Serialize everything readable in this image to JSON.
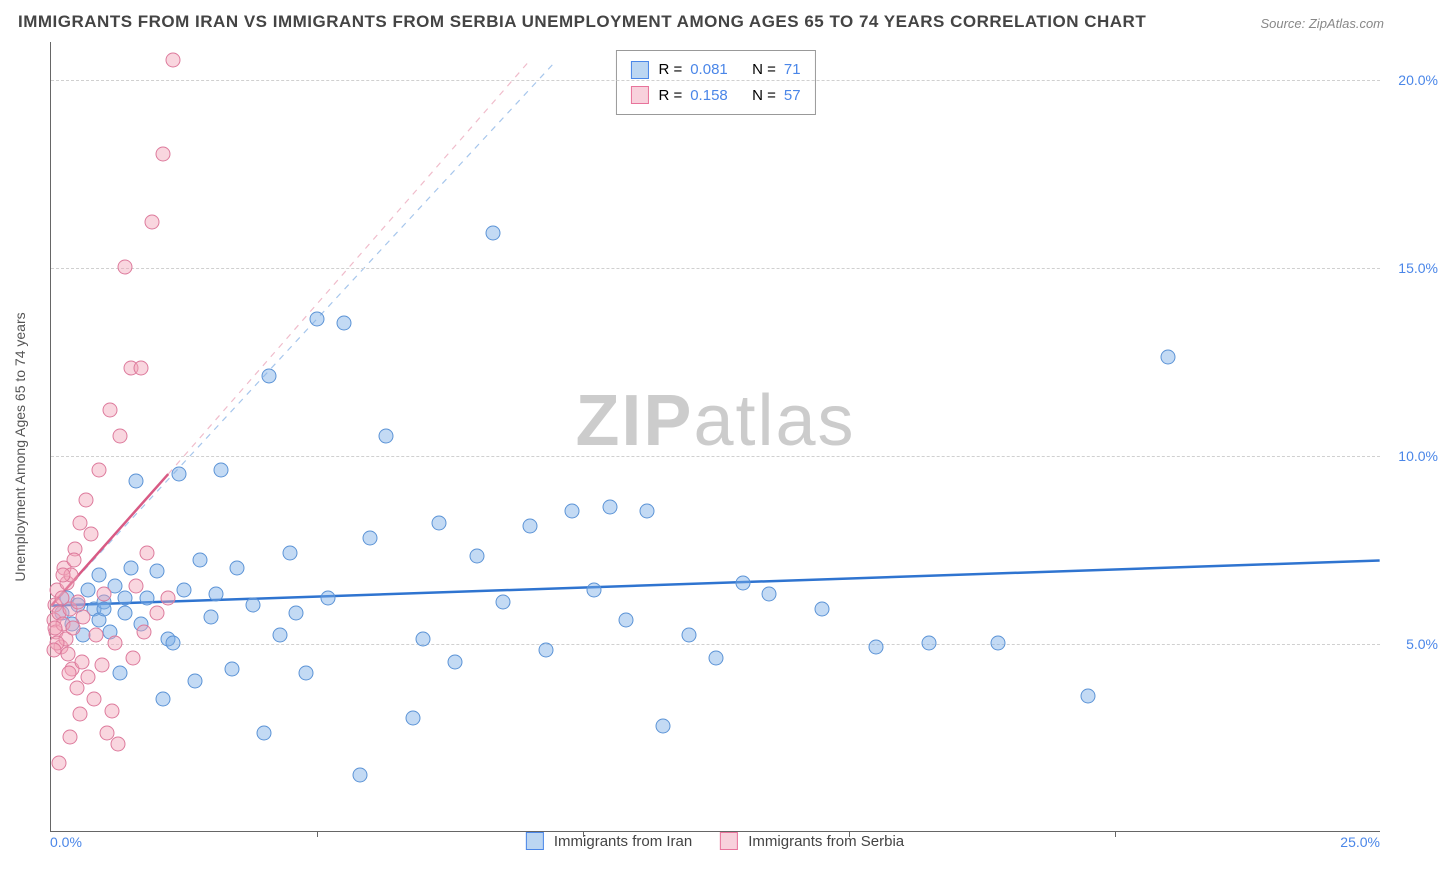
{
  "title": "IMMIGRANTS FROM IRAN VS IMMIGRANTS FROM SERBIA UNEMPLOYMENT AMONG AGES 65 TO 74 YEARS CORRELATION CHART",
  "source": "Source: ZipAtlas.com",
  "y_axis_label": "Unemployment Among Ages 65 to 74 years",
  "watermark_a": "ZIP",
  "watermark_b": "atlas",
  "chart": {
    "type": "scatter",
    "xlim": [
      0,
      25
    ],
    "ylim": [
      0,
      21
    ],
    "x_ticks": [
      0,
      5,
      10,
      15,
      20,
      25
    ],
    "x_tick_labels": [
      "0.0%",
      "",
      "",
      "",
      "",
      "25.0%"
    ],
    "y_ticks": [
      5,
      10,
      15,
      20
    ],
    "y_tick_labels": [
      "5.0%",
      "10.0%",
      "15.0%",
      "20.0%"
    ],
    "grid_color": "#d0d0d0",
    "background_color": "#ffffff",
    "series": [
      {
        "name": "Immigrants from Iran",
        "color_fill": "rgba(122,174,230,0.45)",
        "color_stroke": "#5b93d6",
        "marker_size": 15,
        "r": 0.081,
        "n": 71,
        "trend": {
          "x1": 0,
          "y1": 6.0,
          "x2": 25,
          "y2": 7.2,
          "color": "#2f74d0",
          "width": 2.5,
          "dash": "none"
        },
        "projection": {
          "x1": 0,
          "y1": 6.0,
          "x2": 9.5,
          "y2": 20.5,
          "color": "#a6c6ec",
          "width": 1.2,
          "dash": "6,6"
        },
        "points": [
          [
            0.2,
            5.8
          ],
          [
            0.3,
            6.2
          ],
          [
            0.4,
            5.5
          ],
          [
            0.5,
            6.0
          ],
          [
            0.6,
            5.2
          ],
          [
            0.7,
            6.4
          ],
          [
            0.8,
            5.9
          ],
          [
            0.9,
            5.6
          ],
          [
            1.0,
            6.1
          ],
          [
            1.1,
            5.3
          ],
          [
            1.2,
            6.5
          ],
          [
            1.3,
            4.2
          ],
          [
            1.4,
            5.8
          ],
          [
            1.5,
            7.0
          ],
          [
            1.6,
            9.3
          ],
          [
            1.8,
            6.2
          ],
          [
            2.0,
            6.9
          ],
          [
            2.1,
            3.5
          ],
          [
            2.2,
            5.1
          ],
          [
            2.4,
            9.5
          ],
          [
            2.5,
            6.4
          ],
          [
            2.7,
            4.0
          ],
          [
            2.8,
            7.2
          ],
          [
            3.0,
            5.7
          ],
          [
            3.2,
            9.6
          ],
          [
            3.4,
            4.3
          ],
          [
            3.5,
            7.0
          ],
          [
            3.8,
            6.0
          ],
          [
            4.0,
            2.6
          ],
          [
            4.1,
            12.1
          ],
          [
            4.3,
            5.2
          ],
          [
            4.5,
            7.4
          ],
          [
            4.8,
            4.2
          ],
          [
            5.0,
            13.6
          ],
          [
            5.2,
            6.2
          ],
          [
            5.5,
            13.5
          ],
          [
            5.8,
            1.5
          ],
          [
            6.0,
            7.8
          ],
          [
            6.3,
            10.5
          ],
          [
            6.8,
            3.0
          ],
          [
            7.0,
            5.1
          ],
          [
            7.3,
            8.2
          ],
          [
            7.6,
            4.5
          ],
          [
            8.0,
            7.3
          ],
          [
            8.3,
            15.9
          ],
          [
            8.5,
            6.1
          ],
          [
            9.0,
            8.1
          ],
          [
            9.3,
            4.8
          ],
          [
            9.8,
            8.5
          ],
          [
            10.2,
            6.4
          ],
          [
            10.5,
            8.6
          ],
          [
            10.8,
            5.6
          ],
          [
            11.2,
            8.5
          ],
          [
            11.5,
            2.8
          ],
          [
            12.0,
            5.2
          ],
          [
            12.5,
            4.6
          ],
          [
            13.0,
            6.6
          ],
          [
            13.5,
            6.3
          ],
          [
            14.5,
            5.9
          ],
          [
            15.5,
            4.9
          ],
          [
            16.5,
            5.0
          ],
          [
            17.8,
            5.0
          ],
          [
            19.5,
            3.6
          ],
          [
            21.0,
            12.6
          ],
          [
            1.0,
            5.9
          ],
          [
            1.4,
            6.2
          ],
          [
            1.7,
            5.5
          ],
          [
            0.9,
            6.8
          ],
          [
            2.3,
            5.0
          ],
          [
            3.1,
            6.3
          ],
          [
            4.6,
            5.8
          ]
        ]
      },
      {
        "name": "Immigrants from Serbia",
        "color_fill": "rgba(242,164,185,0.45)",
        "color_stroke": "#dd7a9c",
        "marker_size": 15,
        "r": 0.158,
        "n": 57,
        "trend": {
          "x1": 0,
          "y1": 6.0,
          "x2": 2.2,
          "y2": 9.5,
          "color": "#d85a84",
          "width": 2.5,
          "dash": "none"
        },
        "projection": {
          "x1": 2.2,
          "y1": 9.5,
          "x2": 9.0,
          "y2": 20.5,
          "color": "#f0bccb",
          "width": 1.2,
          "dash": "6,6"
        },
        "points": [
          [
            0.05,
            5.6
          ],
          [
            0.08,
            6.0
          ],
          [
            0.1,
            5.3
          ],
          [
            0.12,
            6.4
          ],
          [
            0.15,
            5.8
          ],
          [
            0.18,
            4.9
          ],
          [
            0.2,
            6.2
          ],
          [
            0.22,
            5.5
          ],
          [
            0.25,
            7.0
          ],
          [
            0.28,
            5.1
          ],
          [
            0.3,
            6.6
          ],
          [
            0.32,
            4.7
          ],
          [
            0.35,
            5.9
          ],
          [
            0.38,
            6.8
          ],
          [
            0.4,
            4.3
          ],
          [
            0.42,
            5.4
          ],
          [
            0.45,
            7.5
          ],
          [
            0.48,
            3.8
          ],
          [
            0.5,
            6.1
          ],
          [
            0.55,
            8.2
          ],
          [
            0.58,
            4.5
          ],
          [
            0.6,
            5.7
          ],
          [
            0.65,
            8.8
          ],
          [
            0.7,
            4.1
          ],
          [
            0.75,
            7.9
          ],
          [
            0.8,
            3.5
          ],
          [
            0.85,
            5.2
          ],
          [
            0.9,
            9.6
          ],
          [
            0.95,
            4.4
          ],
          [
            1.0,
            6.3
          ],
          [
            1.05,
            2.6
          ],
          [
            1.1,
            11.2
          ],
          [
            1.15,
            3.2
          ],
          [
            1.2,
            5.0
          ],
          [
            1.25,
            2.3
          ],
          [
            1.3,
            10.5
          ],
          [
            1.4,
            15.0
          ],
          [
            1.5,
            12.3
          ],
          [
            1.55,
            4.6
          ],
          [
            1.6,
            6.5
          ],
          [
            1.7,
            12.3
          ],
          [
            1.75,
            5.3
          ],
          [
            1.8,
            7.4
          ],
          [
            1.9,
            16.2
          ],
          [
            2.0,
            5.8
          ],
          [
            2.1,
            18.0
          ],
          [
            2.2,
            6.2
          ],
          [
            2.3,
            20.5
          ],
          [
            0.12,
            5.0
          ],
          [
            0.22,
            6.8
          ],
          [
            0.33,
            4.2
          ],
          [
            0.44,
            7.2
          ],
          [
            0.15,
            1.8
          ],
          [
            0.35,
            2.5
          ],
          [
            0.55,
            3.1
          ],
          [
            0.06,
            4.8
          ],
          [
            0.08,
            5.4
          ]
        ]
      }
    ]
  },
  "stats_legend_lbl_r": "R =",
  "stats_legend_lbl_n": "N =",
  "bottom_legend": [
    {
      "swatch": "blue",
      "label": "Immigrants from Iran"
    },
    {
      "swatch": "pink",
      "label": "Immigrants from Serbia"
    }
  ]
}
